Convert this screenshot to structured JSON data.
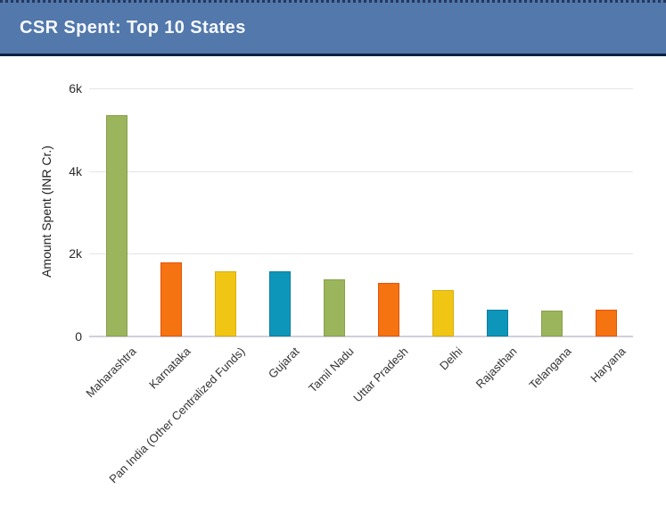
{
  "header": {
    "title": "CSR Spent: Top 10 States"
  },
  "colors": {
    "header_bg": "#5278ac",
    "header_top_border": "#26375e",
    "header_bottom_border": "#0d2144",
    "title_text": "#f7f9fd",
    "gridline": "#e5e5e5",
    "axis_line": "#d2cfdc",
    "tick_text": "#2b2b2b",
    "label_text": "#333333"
  },
  "chart_data": {
    "type": "bar",
    "title": "CSR Spent: Top 10 States",
    "xlabel": "",
    "ylabel": "Amount Spent (INR Cr.)",
    "ylim": [
      0,
      6000
    ],
    "grid": true,
    "legend": false,
    "yticks": [
      {
        "value": 0,
        "label": "0"
      },
      {
        "value": 2000,
        "label": "2k"
      },
      {
        "value": 4000,
        "label": "4k"
      },
      {
        "value": 6000,
        "label": "6k"
      }
    ],
    "categories": [
      "Maharashtra",
      "Karnataka",
      "Pan India (Other Centralized Funds)",
      "Gujarat",
      "Tamil Nadu",
      "Uttar Pradesh",
      "Delhi",
      "Rajasthan",
      "Telangana",
      "Haryana"
    ],
    "values": [
      5350,
      1790,
      1580,
      1575,
      1385,
      1300,
      1125,
      655,
      625,
      645
    ],
    "palette_fills": [
      "#9bb55c",
      "#f57311",
      "#f0c514",
      "#0e95ba"
    ],
    "palette_strokes": [
      "#87a149",
      "#e25407",
      "#d9ae10",
      "#0b7e9e"
    ],
    "bar_color_cycle": [
      "green",
      "orange",
      "yellow",
      "blue"
    ]
  }
}
